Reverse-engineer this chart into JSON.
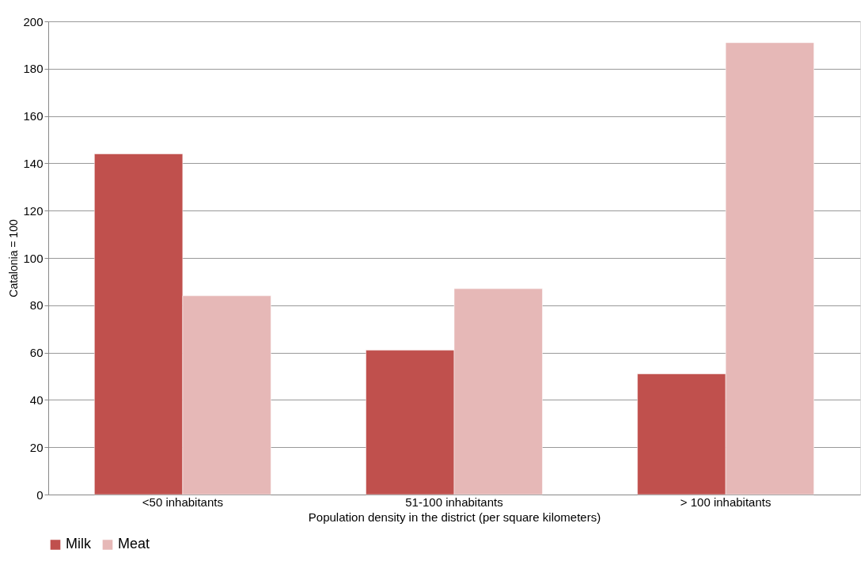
{
  "chart_data": {
    "type": "bar",
    "xlabel": "Population density in the district (per square kilometers)",
    "ylabel": "Catalonia = 100",
    "categories": [
      "<50 inhabitants",
      "51-100 inhabitants",
      "> 100 inhabitants"
    ],
    "series": [
      {
        "name": "Milk",
        "color": "#c0504d",
        "values": [
          144,
          61,
          51
        ]
      },
      {
        "name": "Meat",
        "color": "#e6b8b7",
        "values": [
          84,
          87,
          191
        ]
      }
    ],
    "ylim": [
      0,
      200
    ],
    "yticks": [
      0,
      20,
      40,
      60,
      80,
      100,
      120,
      140,
      160,
      180,
      200
    ],
    "grid": "y",
    "legend": "bottom"
  }
}
